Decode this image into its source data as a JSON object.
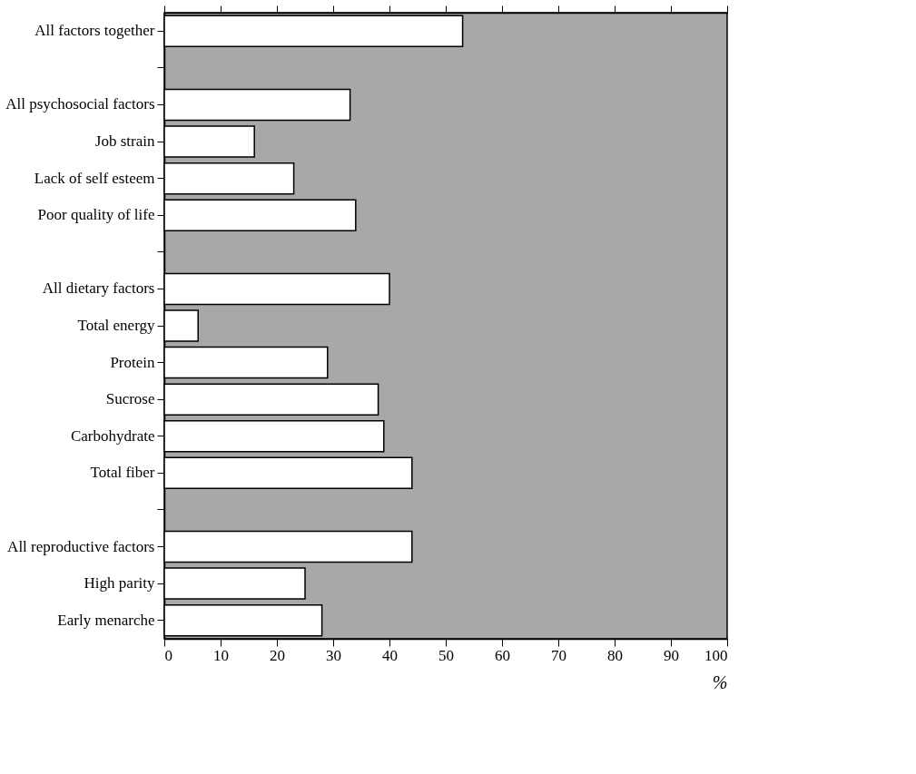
{
  "chart_data": {
    "type": "bar",
    "orientation": "horizontal",
    "xlabel": "%",
    "categories": [
      "All factors together",
      null,
      "All psychosocial factors",
      "Job strain",
      "Lack of self esteem",
      "Poor quality of life",
      null,
      "All dietary factors",
      "Total energy",
      "Protein",
      "Sucrose",
      "Carbohydrate",
      "Total fiber",
      null,
      "All reproductive factors",
      "High parity",
      "Early menarche"
    ],
    "values": [
      53,
      null,
      33,
      16,
      23,
      34,
      null,
      40,
      6,
      29,
      38,
      39,
      44,
      null,
      44,
      25,
      28
    ],
    "color": "#ffffff",
    "xlim": [
      0,
      100
    ],
    "xticks": [
      0,
      10,
      20,
      30,
      40,
      50,
      60,
      70,
      80,
      90,
      100
    ],
    "grid": false
  }
}
